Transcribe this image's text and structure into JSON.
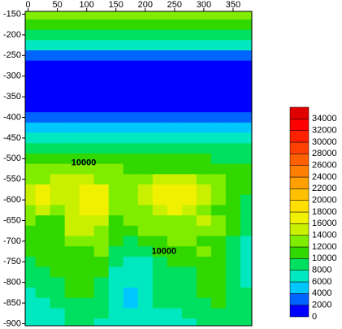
{
  "chart_data": {
    "type": "contour",
    "xlim": [
      -5,
      382
    ],
    "xticks": [
      0,
      50,
      100,
      150,
      200,
      250,
      300,
      350
    ],
    "ylim": [
      -143,
      -905
    ],
    "yticks": [
      -150,
      -200,
      -250,
      -300,
      -350,
      -400,
      -450,
      -500,
      -550,
      -600,
      -650,
      -700,
      -750,
      -800,
      -850,
      -900
    ],
    "x": [
      0,
      25,
      50,
      75,
      100,
      125,
      150,
      175,
      200,
      225,
      250,
      275,
      300,
      325,
      350,
      375
    ],
    "y": [
      -150,
      -175,
      -200,
      -225,
      -250,
      -275,
      -300,
      -325,
      -350,
      -375,
      -400,
      -425,
      -450,
      -475,
      -500,
      -525,
      -550,
      -575,
      -600,
      -625,
      -650,
      -675,
      -700,
      -725,
      -750,
      -775,
      -800,
      -825,
      -850,
      -875,
      -900
    ],
    "z": [
      [
        13000,
        13000,
        13000,
        13000,
        13000,
        13000,
        13000,
        13000,
        13000,
        13000,
        13000,
        13000,
        13000,
        13000,
        13000,
        13000
      ],
      [
        11000,
        11000,
        11000,
        11000,
        11000,
        11000,
        11000,
        11000,
        11000,
        11000,
        11000,
        11000,
        11000,
        11000,
        11000,
        11000
      ],
      [
        9000,
        9000,
        9000,
        9000,
        9000,
        9000,
        9000,
        9000,
        9000,
        9000,
        9000,
        9000,
        9000,
        9000,
        9000,
        9000
      ],
      [
        7000,
        7000,
        7000,
        7000,
        7000,
        7000,
        7000,
        7000,
        7000,
        7000,
        7000,
        7000,
        7000,
        7000,
        7000,
        7000
      ],
      [
        3000,
        3000,
        3000,
        3000,
        3000,
        3000,
        3000,
        3000,
        3000,
        3000,
        3000,
        3000,
        3000,
        3000,
        3000,
        3000
      ],
      [
        1000,
        1000,
        1000,
        1000,
        1000,
        1000,
        1000,
        1000,
        1000,
        1000,
        1000,
        1000,
        1000,
        1000,
        1000,
        1000
      ],
      [
        1000,
        1000,
        1000,
        1000,
        1000,
        1000,
        1000,
        1000,
        1000,
        1000,
        1000,
        1000,
        1000,
        1000,
        1000,
        1000
      ],
      [
        1000,
        1000,
        1000,
        1000,
        1000,
        1000,
        1000,
        1000,
        1000,
        1000,
        1000,
        1000,
        1000,
        1000,
        1000,
        1000
      ],
      [
        1000,
        1000,
        1000,
        1000,
        1000,
        1000,
        1000,
        1000,
        1000,
        1000,
        1000,
        1000,
        1000,
        1000,
        1000,
        1000
      ],
      [
        1000,
        1000,
        1000,
        1000,
        1000,
        1000,
        1000,
        1000,
        1000,
        1000,
        1000,
        1000,
        1000,
        1000,
        1000,
        1000
      ],
      [
        3000,
        3000,
        3000,
        3000,
        3000,
        3000,
        3000,
        3000,
        3000,
        3000,
        3000,
        3000,
        3000,
        3000,
        3000,
        3000
      ],
      [
        5000,
        5000,
        5000,
        5000,
        5000,
        5000,
        5000,
        5000,
        5000,
        5000,
        5000,
        5000,
        5000,
        5000,
        5000,
        5000
      ],
      [
        7000,
        7000,
        7000,
        7000,
        7000,
        7000,
        7000,
        7000,
        7000,
        7000,
        7000,
        7000,
        7000,
        7000,
        7000,
        7000
      ],
      [
        9000,
        9000,
        9000,
        9000,
        9000,
        9000,
        9000,
        9000,
        9000,
        9000,
        9000,
        9000,
        9000,
        9000,
        9000,
        9000
      ],
      [
        11000,
        11000,
        11000,
        11000,
        11000,
        11000,
        11000,
        11000,
        11000,
        11000,
        11000,
        11000,
        11000,
        9000,
        9000,
        9000
      ],
      [
        12500,
        12500,
        12500,
        12500,
        12500,
        12500,
        12500,
        11000,
        11000,
        11000,
        11000,
        11000,
        11000,
        11000,
        11000,
        11000
      ],
      [
        13000,
        13000,
        14500,
        14500,
        15000,
        13000,
        12500,
        12000,
        13000,
        14500,
        15000,
        14500,
        13000,
        12500,
        11000,
        11000
      ],
      [
        14500,
        16500,
        14500,
        15000,
        17000,
        16500,
        13000,
        12000,
        14500,
        17000,
        17500,
        16500,
        14000,
        12500,
        11000,
        11000
      ],
      [
        15000,
        17000,
        15000,
        15500,
        17500,
        17000,
        13500,
        12500,
        15000,
        17000,
        17500,
        16000,
        14000,
        12000,
        11000,
        9000
      ],
      [
        13000,
        14500,
        13500,
        15000,
        16500,
        16000,
        12500,
        12000,
        13500,
        15000,
        16000,
        14500,
        13500,
        11500,
        10000,
        9000
      ],
      [
        12000,
        11500,
        11000,
        14500,
        15000,
        14500,
        11000,
        12000,
        12500,
        13500,
        13500,
        13000,
        14500,
        13500,
        10000,
        9000
      ],
      [
        10500,
        11000,
        11500,
        14000,
        14500,
        13500,
        10500,
        11500,
        12000,
        12500,
        12000,
        13000,
        13000,
        12000,
        10000,
        8000
      ],
      [
        11000,
        10500,
        10500,
        12500,
        13000,
        12500,
        10000,
        9000,
        10500,
        11000,
        12000,
        12500,
        11500,
        10500,
        9000,
        7000
      ],
      [
        10000,
        11000,
        10500,
        11000,
        11500,
        12000,
        9000,
        8000,
        9000,
        10500,
        11000,
        11500,
        12000,
        10500,
        9000,
        7000
      ],
      [
        9000,
        10500,
        10000,
        10500,
        11000,
        11500,
        8000,
        7000,
        7500,
        9000,
        10500,
        10500,
        11000,
        10500,
        9000,
        7500
      ],
      [
        8500,
        9500,
        10000,
        10500,
        10500,
        10500,
        7500,
        7000,
        7000,
        8500,
        9500,
        9500,
        10000,
        10500,
        8500,
        7000
      ],
      [
        8000,
        8500,
        9500,
        10000,
        10500,
        9500,
        7000,
        6500,
        7000,
        8500,
        9000,
        9500,
        10000,
        10500,
        9000,
        7000
      ],
      [
        7500,
        8000,
        9000,
        10000,
        10000,
        9000,
        7000,
        5000,
        7000,
        8500,
        8500,
        9000,
        10000,
        10500,
        9500,
        8000
      ],
      [
        7000,
        7500,
        8000,
        9000,
        9500,
        8500,
        7000,
        5000,
        7000,
        8000,
        8000,
        8500,
        9500,
        10000,
        9500,
        8500
      ],
      [
        6500,
        7000,
        7500,
        8500,
        9000,
        8000,
        7000,
        6500,
        7000,
        7500,
        7500,
        8000,
        9000,
        9500,
        9500,
        9000
      ],
      [
        6500,
        7000,
        7000,
        8000,
        8500,
        7500,
        6500,
        6500,
        7000,
        7000,
        7500,
        7500,
        8500,
        9000,
        9500,
        9000
      ]
    ],
    "levels": [
      0,
      2000,
      4000,
      6000,
      8000,
      10000,
      12000,
      14000,
      16000,
      18000,
      20000,
      22000,
      24000,
      26000,
      28000,
      30000,
      32000,
      34000
    ],
    "colors": [
      "#0000ff",
      "#0064ff",
      "#00c8ff",
      "#00e8c0",
      "#00e060",
      "#30d800",
      "#80ec00",
      "#c8f000",
      "#f0f000",
      "#ffe000",
      "#ffc000",
      "#ffa000",
      "#ff8000",
      "#ff6000",
      "#ff4000",
      "#ff2000",
      "#ff0000",
      "#e00000"
    ],
    "contour_labels": [
      {
        "text": "10000",
        "x": 95,
        "y": -510
      },
      {
        "text": "10000",
        "x": 232,
        "y": -725
      }
    ]
  }
}
